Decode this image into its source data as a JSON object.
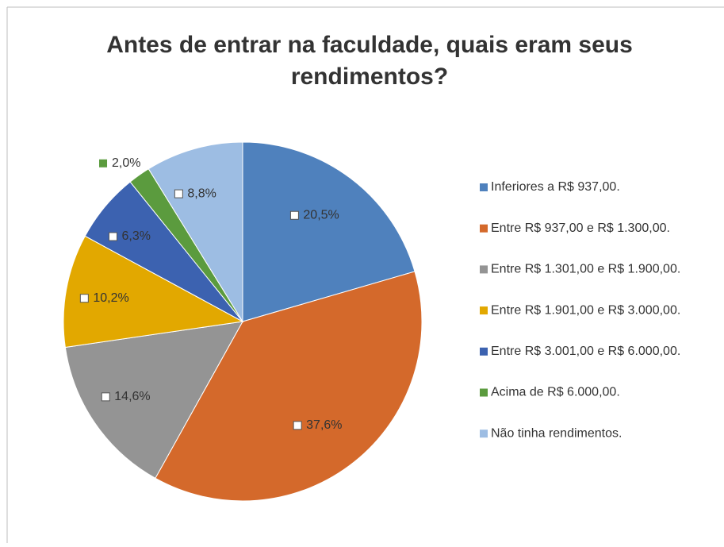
{
  "chart_data": {
    "type": "pie",
    "title": "Antes de entrar na faculdade, quais eram seus rendimentos?",
    "categories": [
      "Inferiores a R$ 937,00.",
      "Entre R$ 937,00 e R$ 1.300,00.",
      "Entre R$ 1.301,00 e R$ 1.900,00.",
      "Entre R$ 1.901,00 e R$ 3.000,00.",
      "Entre R$ 3.001,00 e R$ 6.000,00.",
      "Acima de R$ 6.000,00.",
      "Não tinha rendimentos."
    ],
    "values": [
      20.5,
      37.6,
      14.6,
      10.2,
      6.3,
      2.0,
      8.8
    ],
    "value_labels": [
      "20,5%",
      "37,6%",
      "14,6%",
      "10,2%",
      "6,3%",
      "2,0%",
      "8,8%"
    ],
    "colors": [
      "#4f81bd",
      "#d4692b",
      "#949494",
      "#e2a800",
      "#3c62b0",
      "#5b9b3e",
      "#9dbde3"
    ],
    "legend": "right"
  }
}
